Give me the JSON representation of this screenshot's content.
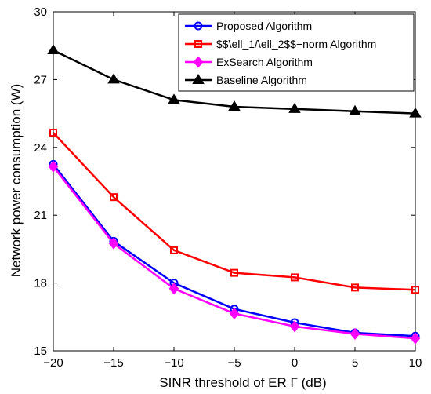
{
  "chart_data": {
    "type": "line",
    "xlabel": "SINR threshold of ER Γ (dB)",
    "ylabel": "Network power consumption (W)",
    "xlim": [
      -20,
      10
    ],
    "ylim": [
      15,
      30
    ],
    "xticks": [
      -20,
      -15,
      -10,
      -5,
      0,
      5,
      10
    ],
    "xtick_labels": [
      "−20",
      "−15",
      "−10",
      "−5",
      "0",
      "5",
      "10"
    ],
    "yticks": [
      15,
      18,
      21,
      24,
      27,
      30
    ],
    "ytick_labels": [
      "15",
      "18",
      "21",
      "24",
      "27",
      "30"
    ],
    "grid": false,
    "legend_position": "top-right",
    "x": [
      -20,
      -15,
      -10,
      -5,
      0,
      5,
      10
    ],
    "series": [
      {
        "name": "Proposed Algorithm",
        "color": "#0000ff",
        "marker": "circle",
        "values": [
          23.25,
          19.85,
          18.0,
          16.85,
          16.25,
          15.8,
          15.65
        ]
      },
      {
        "name": "$$\\ell_1/\\ell_2$$−norm Algorithm",
        "color": "#ff0000",
        "marker": "square",
        "values": [
          24.65,
          21.8,
          19.45,
          18.45,
          18.25,
          17.8,
          17.7
        ]
      },
      {
        "name": "ExSearch Algorithm",
        "color": "#ff00ff",
        "marker": "diamond",
        "values": [
          23.15,
          19.75,
          17.75,
          16.65,
          16.08,
          15.75,
          15.55
        ]
      },
      {
        "name": "Baseline Algorithm",
        "color": "#000000",
        "marker": "triangle",
        "values": [
          28.3,
          27.0,
          26.1,
          25.8,
          25.7,
          25.6,
          25.5
        ]
      }
    ]
  }
}
